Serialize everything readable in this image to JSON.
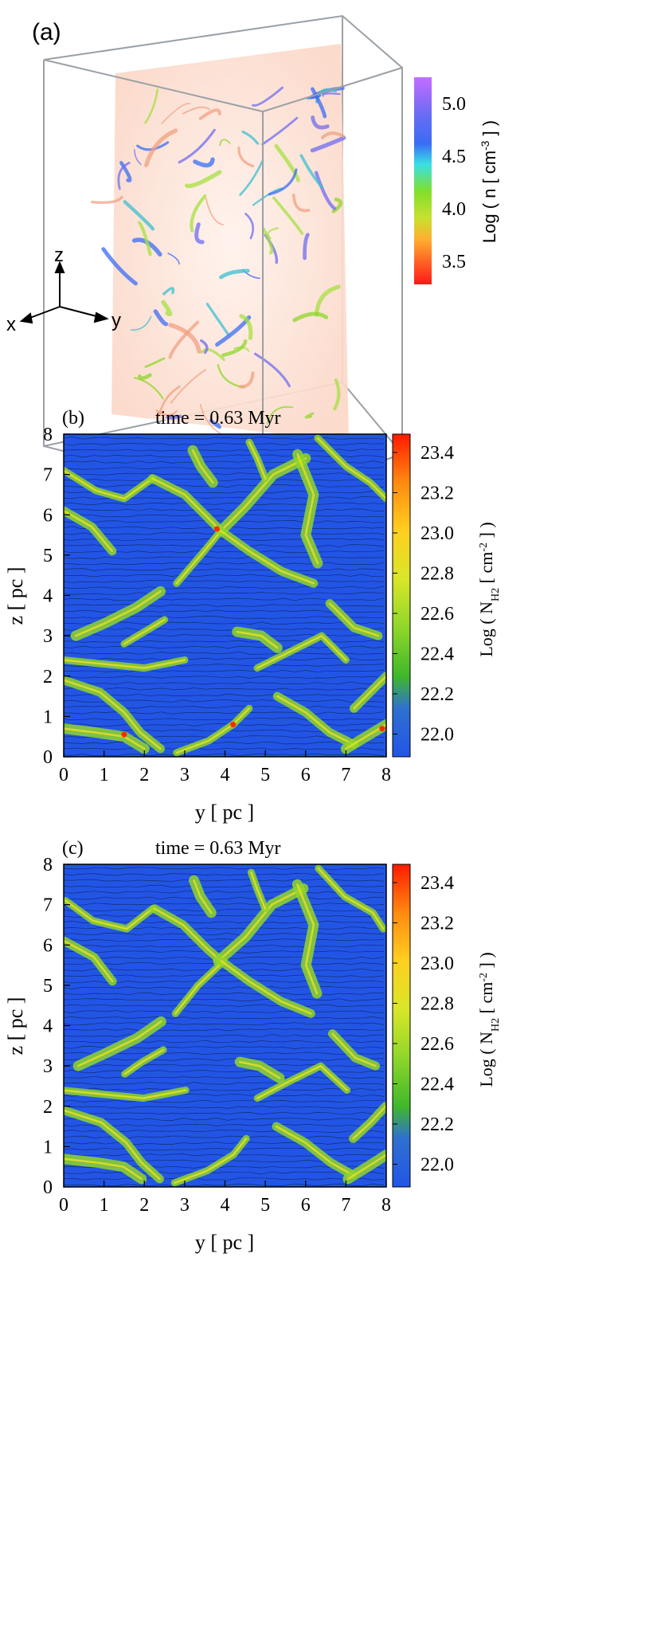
{
  "panel_a": {
    "label": "(a)",
    "axes": {
      "z": "z",
      "x": "x",
      "y": "y"
    },
    "colorbar": {
      "label_prefix": "Log ( n [ cm",
      "label_sup": "-3",
      "label_suffix": " ] )",
      "ticks": [
        "5.0",
        "4.5",
        "4.0",
        "3.5"
      ],
      "colors": [
        "#c060ff",
        "#3a6cf5",
        "#39e6e6",
        "#80e02a",
        "#ffd030",
        "#ff1818"
      ]
    }
  },
  "panel_b": {
    "label": "(b)",
    "time": "time = 0.63 Myr",
    "xlabel": "y [ pc ]",
    "ylabel": "z [ pc ]",
    "xticks": [
      "0",
      "1",
      "2",
      "3",
      "4",
      "5",
      "6",
      "7",
      "8"
    ],
    "yticks": [
      "0",
      "1",
      "2",
      "3",
      "4",
      "5",
      "6",
      "7",
      "8"
    ],
    "colorbar": {
      "label_prefix": "Log ( N",
      "label_sub": "H2",
      "label_suffix": " [ cm",
      "label_sup": "-2",
      "label_end": " ] )",
      "ticks": [
        "23.4",
        "23.2",
        "23.0",
        "22.8",
        "22.6",
        "22.4",
        "22.2",
        "22.0"
      ]
    }
  },
  "panel_c": {
    "label": "(c)",
    "time": "time = 0.63 Myr",
    "xlabel": "y [ pc ]",
    "ylabel": "z [ pc ]",
    "xticks": [
      "0",
      "1",
      "2",
      "3",
      "4",
      "5",
      "6",
      "7",
      "8"
    ],
    "yticks": [
      "0",
      "1",
      "2",
      "3",
      "4",
      "5",
      "6",
      "7",
      "8"
    ],
    "colorbar": {
      "label_prefix": "Log ( N",
      "label_sub": "H2",
      "label_suffix": " [ cm",
      "label_sup": "-2",
      "label_end": " ] )",
      "ticks": [
        "23.4",
        "23.2",
        "23.0",
        "22.8",
        "22.6",
        "22.4",
        "22.2",
        "22.0"
      ]
    }
  },
  "colors": {
    "background_low": "#2255e6",
    "filament": "#8fd62a",
    "filament_core": "#f0e020",
    "peak": "#ff2a00"
  }
}
